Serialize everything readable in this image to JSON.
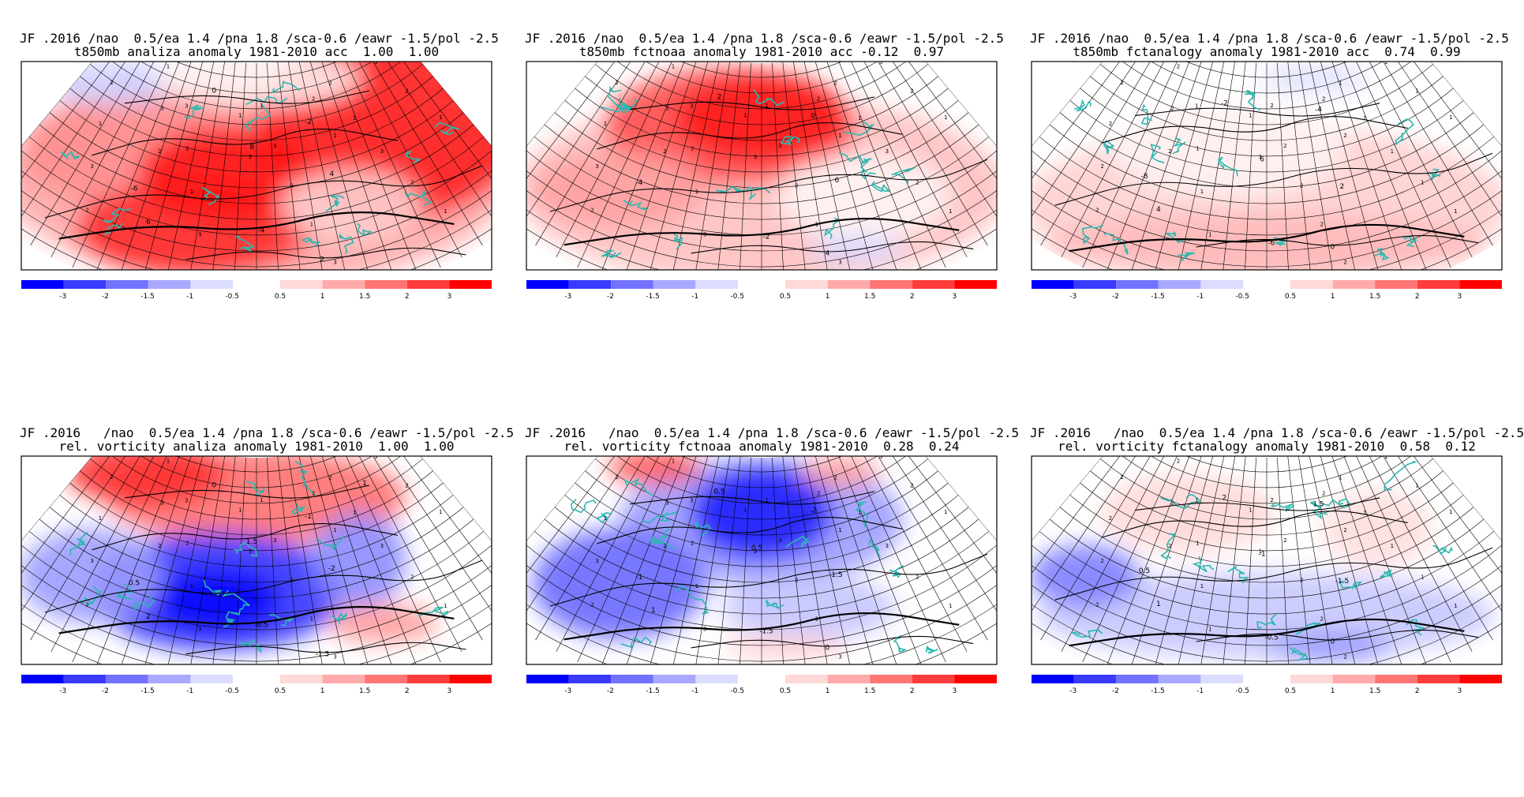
{
  "colorbar": {
    "labels": [
      "-3",
      "-2",
      "-1.5",
      "-1",
      "-0.5",
      "0.5",
      "1",
      "1.5",
      "2",
      "3"
    ],
    "neg_colors": [
      "#0000ff",
      "#3a3aff",
      "#7272ff",
      "#a8a8ff",
      "#dcdcff"
    ],
    "pos_colors": [
      "#ffd8d8",
      "#ffaaaa",
      "#ff7474",
      "#ff3c3c",
      "#ff0000"
    ]
  },
  "colors": {
    "coastline": "#2ab8b0",
    "contour": "#000000",
    "strong_red": "#ff1414",
    "strong_blue": "#0a0aff"
  },
  "panels": [
    {
      "title1": "JF .2016 /nao  0.5/ea 1.4 /pna 1.8 /sca-0.6 /eawr -1.5/pol -2.5",
      "title2": "t850mb analiza anomaly 1981-2010 acc  1.00  1.00",
      "variable": "t850mb",
      "source": "analiza",
      "field": "t850-analysis",
      "contour_labels": [
        "-6",
        "-4",
        "-2",
        "0",
        "2",
        "4",
        "6",
        "8"
      ],
      "grid_labels": [
        "3",
        "2",
        "1"
      ]
    },
    {
      "title1": "JF .2016 /nao  0.5/ea 1.4 /pna 1.8 /sca-0.6 /eawr -1.5/pol -2.5",
      "title2": "t850mb fctnoaa anomaly 1981-2010 acc -0.12  0.97",
      "variable": "t850mb",
      "source": "fctnoaa",
      "field": "t850-noaa",
      "contour_labels": [
        "-4",
        "-2",
        "0",
        "2",
        "4",
        "6"
      ],
      "grid_labels": [
        "3",
        "2",
        "1"
      ]
    },
    {
      "title1": "JF .2016 /nao  0.5/ea 1.4 /pna 1.8 /sca-0.6 /eawr -1.5/pol -2.5",
      "title2": "t850mb fctanalogy anomaly 1981-2010 acc  0.74  0.99",
      "variable": "t850mb",
      "source": "fctanalogy",
      "field": "t850-analogy",
      "contour_labels": [
        "-8",
        "-6",
        "-4",
        "-2",
        "0",
        "2",
        "4",
        "6"
      ],
      "grid_labels": [
        "2",
        "1"
      ]
    },
    {
      "title1": "JF .2016   /nao  0.5/ea 1.4 /pna 1.8 /sca-0.6 /eawr -1.5/pol -2.5",
      "title2": "rel. vorticity analiza anomaly 1981-2010  1.00  1.00",
      "variable": "rel. vorticity",
      "source": "analiza",
      "field": "vort-analysis",
      "contour_labels": [
        "0.5",
        "-0.5",
        "-1",
        "0",
        "-1.5",
        "-2",
        "2",
        "1.5",
        "1"
      ],
      "grid_labels": [
        "3",
        "2",
        "1"
      ]
    },
    {
      "title1": "JF .2016   /nao  0.5/ea 1.4 /pna 1.8 /sca-0.6 /eawr -1.5/pol -2.5",
      "title2": "rel. vorticity fctnoaa anomaly 1981-2010  0.28  0.24",
      "variable": "rel. vorticity",
      "source": "fctnoaa",
      "field": "vort-noaa",
      "contour_labels": [
        "-1",
        "-1.5",
        "-2",
        "0.5",
        "0",
        "1.5",
        "1",
        "0.5"
      ],
      "grid_labels": [
        "3",
        "2",
        "1"
      ]
    },
    {
      "title1": "JF .2016   /nao  0.5/ea 1.4 /pna 1.8 /sca-0.6 /eawr -1.5/pol -2.5",
      "title2": "rel. vorticity fctanalogy anomaly 1981-2010  0.58  0.12",
      "variable": "rel. vorticity",
      "source": "fctanalogy",
      "field": "vort-analogy",
      "contour_labels": [
        "0.5",
        "-0.5",
        "1.5",
        "2",
        "0",
        "-1.5",
        "1",
        "-1"
      ],
      "grid_labels": [
        "2",
        "1"
      ]
    }
  ]
}
